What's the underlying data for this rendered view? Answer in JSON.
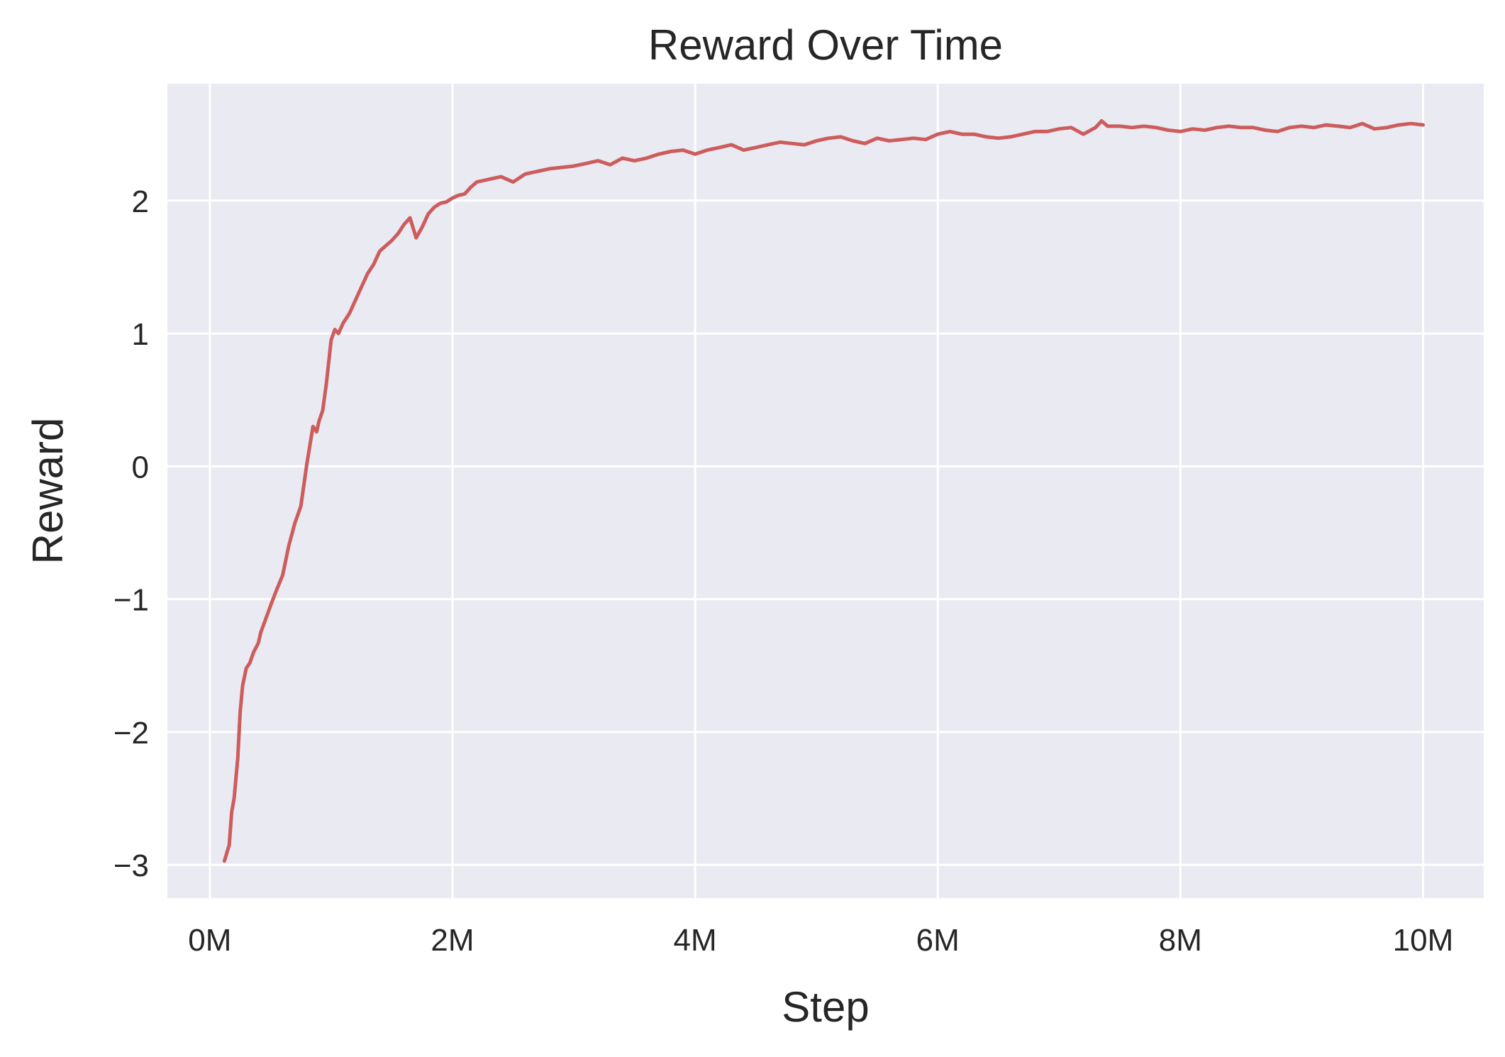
{
  "chart_data": {
    "type": "line",
    "title": "Reward Over Time",
    "xlabel": "Step",
    "ylabel": "Reward",
    "xlim": [
      -0.35,
      10.5
    ],
    "ylim": [
      -3.25,
      2.88
    ],
    "x_unit": "M steps",
    "x_ticks": [
      0,
      2,
      4,
      6,
      8,
      10
    ],
    "x_tick_labels": [
      "0M",
      "2M",
      "4M",
      "6M",
      "8M",
      "10M"
    ],
    "y_ticks": [
      -3,
      -2,
      -1,
      0,
      1,
      2
    ],
    "y_tick_labels": [
      "−3",
      "−2",
      "−1",
      "0",
      "1",
      "2"
    ],
    "grid": true,
    "legend": "none",
    "colors": {
      "background": "#eaeaf2",
      "grid": "#ffffff",
      "line": "#cd5c5c",
      "text": "#262626"
    },
    "series": [
      {
        "x": [
          0.12,
          0.16,
          0.18,
          0.2,
          0.23,
          0.25,
          0.27,
          0.3,
          0.33,
          0.36,
          0.4,
          0.42,
          0.46,
          0.5,
          0.55,
          0.6,
          0.65,
          0.7,
          0.75,
          0.8,
          0.85,
          0.88,
          0.9,
          0.93,
          0.96,
          1.0,
          1.03,
          1.06,
          1.1,
          1.15,
          1.2,
          1.25,
          1.3,
          1.35,
          1.4,
          1.45,
          1.5,
          1.55,
          1.6,
          1.65,
          1.68,
          1.7,
          1.75,
          1.8,
          1.85,
          1.9,
          1.95,
          2.0,
          2.05,
          2.1,
          2.15,
          2.2,
          2.3,
          2.4,
          2.5,
          2.6,
          2.7,
          2.8,
          2.9,
          3.0,
          3.1,
          3.2,
          3.3,
          3.4,
          3.5,
          3.6,
          3.7,
          3.8,
          3.9,
          4.0,
          4.1,
          4.2,
          4.3,
          4.4,
          4.5,
          4.6,
          4.7,
          4.8,
          4.9,
          5.0,
          5.1,
          5.2,
          5.3,
          5.4,
          5.5,
          5.6,
          5.7,
          5.8,
          5.9,
          6.0,
          6.1,
          6.2,
          6.3,
          6.4,
          6.5,
          6.6,
          6.7,
          6.8,
          6.9,
          7.0,
          7.1,
          7.2,
          7.3,
          7.35,
          7.4,
          7.5,
          7.6,
          7.7,
          7.8,
          7.9,
          8.0,
          8.1,
          8.2,
          8.3,
          8.4,
          8.5,
          8.6,
          8.7,
          8.8,
          8.9,
          9.0,
          9.1,
          9.2,
          9.3,
          9.4,
          9.5,
          9.6,
          9.7,
          9.8,
          9.9,
          10.0
        ],
        "values": [
          -2.97,
          -2.85,
          -2.6,
          -2.5,
          -2.2,
          -1.85,
          -1.65,
          -1.52,
          -1.48,
          -1.4,
          -1.33,
          -1.25,
          -1.15,
          -1.05,
          -0.93,
          -0.82,
          -0.6,
          -0.43,
          -0.3,
          0.02,
          0.3,
          0.26,
          0.34,
          0.42,
          0.62,
          0.95,
          1.03,
          1.0,
          1.08,
          1.15,
          1.25,
          1.35,
          1.45,
          1.52,
          1.62,
          1.66,
          1.7,
          1.75,
          1.82,
          1.87,
          1.78,
          1.72,
          1.8,
          1.9,
          1.95,
          1.98,
          1.99,
          2.02,
          2.04,
          2.05,
          2.1,
          2.14,
          2.16,
          2.18,
          2.14,
          2.2,
          2.22,
          2.24,
          2.25,
          2.26,
          2.28,
          2.3,
          2.27,
          2.32,
          2.3,
          2.32,
          2.35,
          2.37,
          2.38,
          2.35,
          2.38,
          2.4,
          2.42,
          2.38,
          2.4,
          2.42,
          2.44,
          2.43,
          2.42,
          2.45,
          2.47,
          2.48,
          2.45,
          2.43,
          2.47,
          2.45,
          2.46,
          2.47,
          2.46,
          2.5,
          2.52,
          2.5,
          2.5,
          2.48,
          2.47,
          2.48,
          2.5,
          2.52,
          2.52,
          2.54,
          2.55,
          2.5,
          2.55,
          2.6,
          2.56,
          2.56,
          2.55,
          2.56,
          2.55,
          2.53,
          2.52,
          2.54,
          2.53,
          2.55,
          2.56,
          2.55,
          2.55,
          2.53,
          2.52,
          2.55,
          2.56,
          2.55,
          2.57,
          2.56,
          2.55,
          2.58,
          2.54,
          2.55,
          2.57,
          2.58,
          2.57
        ]
      }
    ]
  }
}
